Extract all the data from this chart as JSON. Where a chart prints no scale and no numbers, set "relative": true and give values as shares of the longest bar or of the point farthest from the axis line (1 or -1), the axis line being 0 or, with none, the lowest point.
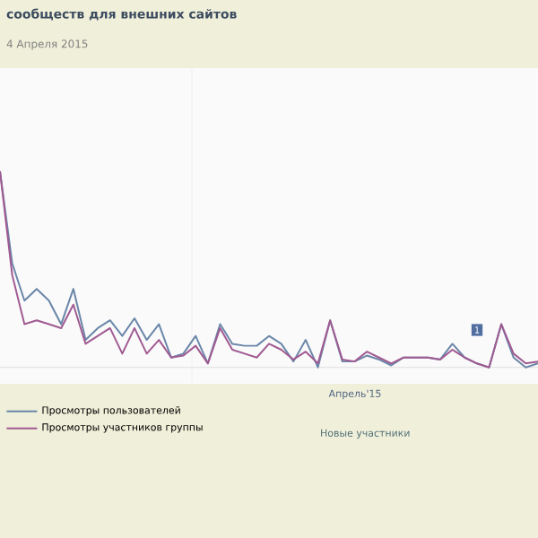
{
  "chart_data": {
    "type": "line",
    "title": "сообществ для внешних сайтов",
    "subtitle": "4 Апреля 2015",
    "relative": true,
    "grid": true,
    "legend": "bottom left",
    "marker": "none",
    "line_style": "solid",
    "categories": [
      null,
      null,
      null,
      null,
      null,
      null,
      null,
      null,
      null,
      null,
      null,
      null,
      null,
      null,
      null,
      null,
      null,
      null,
      null,
      null,
      null,
      null,
      null,
      null,
      null,
      null,
      null,
      null,
      null,
      null,
      null,
      null,
      null,
      null,
      null,
      null,
      null,
      null,
      null,
      null,
      null,
      null,
      null,
      null,
      null
    ],
    "series": [
      {
        "name": "Просмотры пользователей",
        "color": "#6a86a8",
        "values": [
          1,
          0.53,
          0.34,
          0.4,
          0.34,
          0.22,
          0.4,
          0.14,
          0.2,
          0.24,
          0.16,
          0.25,
          0.14,
          0.22,
          0.05,
          0.07,
          0.16,
          0.02,
          0.22,
          0.12,
          0.11,
          0.11,
          0.16,
          0.12,
          0.03,
          0.14,
          0,
          0.24,
          0.03,
          0.03,
          0.06,
          0.04,
          0.01,
          0.05,
          0.05,
          0.05,
          0.04,
          0.12,
          0.05,
          0.02,
          0,
          0.22,
          0.05,
          0,
          0.02
        ]
      },
      {
        "name": "Просмотры участников группы",
        "color": "#a05a92",
        "values": [
          1,
          0.47,
          0.22,
          0.24,
          0.22,
          0.2,
          0.32,
          0.12,
          0.16,
          0.2,
          0.07,
          0.2,
          0.07,
          0.14,
          0.05,
          0.06,
          0.11,
          0.02,
          0.2,
          0.09,
          0.07,
          0.05,
          0.12,
          0.09,
          0.04,
          0.08,
          0.02,
          0.24,
          0.04,
          0.03,
          0.08,
          0.05,
          0.02,
          0.05,
          0.05,
          0.05,
          0.04,
          0.09,
          0.05,
          0.02,
          0,
          0.22,
          0.07,
          0.02,
          0.03
        ]
      }
    ],
    "annotations": [
      "Новые участники",
      "1",
      "Апрель'15"
    ]
  }
}
